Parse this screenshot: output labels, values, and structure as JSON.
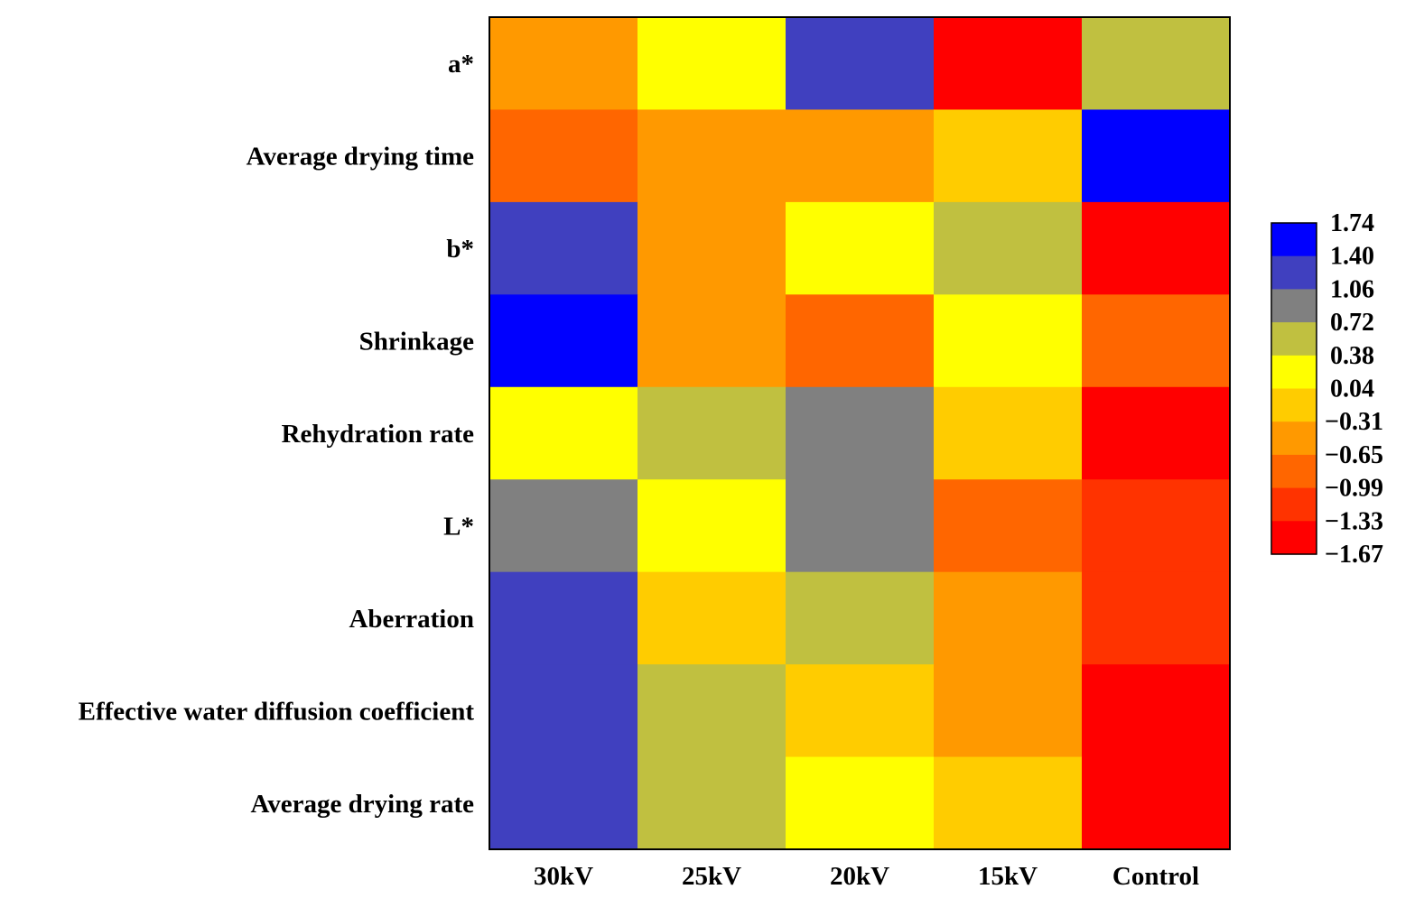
{
  "chart_data": {
    "type": "heatmap",
    "title": "",
    "xlabel": "",
    "ylabel": "",
    "columns": [
      "30kV",
      "25kV",
      "20kV",
      "15kV",
      "Control"
    ],
    "rows": [
      "a*",
      "Average drying time",
      "b*",
      "Shrinkage",
      "Rehydration rate",
      "L*",
      "Aberration",
      "Effective water diffusion coefficient",
      "Average drying rate"
    ],
    "values": [
      [
        -0.45,
        0.2,
        1.25,
        -1.55,
        0.55
      ],
      [
        -0.85,
        -0.5,
        -0.5,
        -0.15,
        1.62
      ],
      [
        1.25,
        -0.5,
        0.2,
        0.55,
        -1.55
      ],
      [
        1.62,
        -0.5,
        -0.85,
        0.2,
        -0.85
      ],
      [
        0.2,
        0.55,
        0.9,
        -0.15,
        -1.55
      ],
      [
        0.9,
        0.2,
        0.9,
        -0.85,
        -1.2
      ],
      [
        1.25,
        -0.15,
        0.55,
        -0.5,
        -1.2
      ],
      [
        1.25,
        0.55,
        -0.15,
        -0.5,
        -1.55
      ],
      [
        1.25,
        0.55,
        0.2,
        -0.15,
        -1.55
      ]
    ],
    "color_scale": {
      "ticks": [
        "1.74",
        "1.40",
        "1.06",
        "0.72",
        "0.38",
        "0.04",
        "−0.31",
        "−0.65",
        "−0.99",
        "−1.33",
        "−1.67"
      ],
      "levels": [
        {
          "min": 1.4,
          "max": 1.74,
          "color": "#0000ff"
        },
        {
          "min": 1.06,
          "max": 1.4,
          "color": "#4040bf"
        },
        {
          "min": 0.72,
          "max": 1.06,
          "color": "#808080"
        },
        {
          "min": 0.38,
          "max": 0.72,
          "color": "#c0c040"
        },
        {
          "min": 0.04,
          "max": 0.38,
          "color": "#ffff00"
        },
        {
          "min": -0.31,
          "max": 0.04,
          "color": "#ffcc00"
        },
        {
          "min": -0.65,
          "max": -0.31,
          "color": "#ff9900"
        },
        {
          "min": -0.99,
          "max": -0.65,
          "color": "#ff6600"
        },
        {
          "min": -1.33,
          "max": -0.99,
          "color": "#ff3300"
        },
        {
          "min": -1.67,
          "max": -1.33,
          "color": "#ff0000"
        }
      ],
      "placement": "right"
    }
  }
}
